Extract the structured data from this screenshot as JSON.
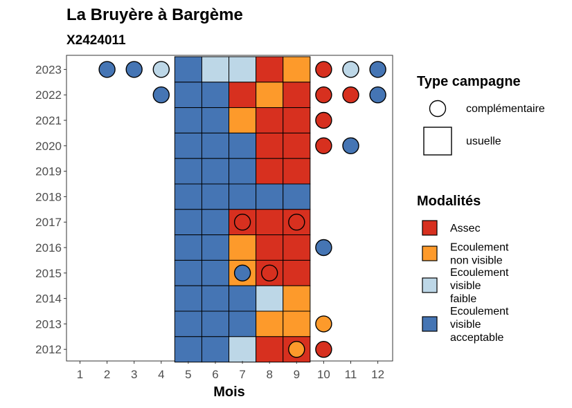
{
  "title": "La Bruyère à Bargème",
  "subtitle": "X2424011",
  "chart_data": {
    "type": "heatmap",
    "xlabel": "Mois",
    "ylabel": "",
    "x_ticks": [
      1,
      2,
      3,
      4,
      5,
      6,
      7,
      8,
      9,
      10,
      11,
      12
    ],
    "y_ticks": [
      2023,
      2022,
      2021,
      2020,
      2019,
      2018,
      2017,
      2016,
      2015,
      2014,
      2013,
      2012
    ],
    "colors": {
      "Assec": "#d7301f",
      "Ecoulement non visible": "#fd9a2b",
      "Ecoulement visible faible": "#bdd7e7",
      "Ecoulement visible acceptable": "#4575b4"
    },
    "usuelle": [
      {
        "year": 2023,
        "cells": [
          [
            5,
            "Ecoulement visible acceptable"
          ],
          [
            6,
            "Ecoulement visible faible"
          ],
          [
            7,
            "Ecoulement visible faible"
          ],
          [
            8,
            "Assec"
          ],
          [
            9,
            "Ecoulement non visible"
          ]
        ]
      },
      {
        "year": 2022,
        "cells": [
          [
            5,
            "Ecoulement visible acceptable"
          ],
          [
            6,
            "Ecoulement visible acceptable"
          ],
          [
            7,
            "Assec"
          ],
          [
            8,
            "Ecoulement non visible"
          ],
          [
            9,
            "Assec"
          ]
        ]
      },
      {
        "year": 2021,
        "cells": [
          [
            5,
            "Ecoulement visible acceptable"
          ],
          [
            6,
            "Ecoulement visible acceptable"
          ],
          [
            7,
            "Ecoulement non visible"
          ],
          [
            8,
            "Assec"
          ],
          [
            9,
            "Assec"
          ]
        ]
      },
      {
        "year": 2020,
        "cells": [
          [
            5,
            "Ecoulement visible acceptable"
          ],
          [
            6,
            "Ecoulement visible acceptable"
          ],
          [
            7,
            "Ecoulement visible acceptable"
          ],
          [
            8,
            "Assec"
          ],
          [
            9,
            "Assec"
          ]
        ]
      },
      {
        "year": 2019,
        "cells": [
          [
            5,
            "Ecoulement visible acceptable"
          ],
          [
            6,
            "Ecoulement visible acceptable"
          ],
          [
            7,
            "Ecoulement visible acceptable"
          ],
          [
            8,
            "Assec"
          ],
          [
            9,
            "Assec"
          ]
        ]
      },
      {
        "year": 2018,
        "cells": [
          [
            5,
            "Ecoulement visible acceptable"
          ],
          [
            6,
            "Ecoulement visible acceptable"
          ],
          [
            7,
            "Ecoulement visible acceptable"
          ],
          [
            8,
            "Ecoulement visible acceptable"
          ],
          [
            9,
            "Ecoulement visible acceptable"
          ]
        ]
      },
      {
        "year": 2017,
        "cells": [
          [
            5,
            "Ecoulement visible acceptable"
          ],
          [
            6,
            "Ecoulement visible acceptable"
          ],
          [
            7,
            "Assec"
          ],
          [
            8,
            "Assec"
          ],
          [
            9,
            "Assec"
          ]
        ]
      },
      {
        "year": 2016,
        "cells": [
          [
            5,
            "Ecoulement visible acceptable"
          ],
          [
            6,
            "Ecoulement visible acceptable"
          ],
          [
            7,
            "Ecoulement non visible"
          ],
          [
            8,
            "Assec"
          ],
          [
            9,
            "Assec"
          ]
        ]
      },
      {
        "year": 2015,
        "cells": [
          [
            5,
            "Ecoulement visible acceptable"
          ],
          [
            6,
            "Ecoulement visible acceptable"
          ],
          [
            7,
            "Ecoulement non visible"
          ],
          [
            8,
            "Assec"
          ],
          [
            9,
            "Assec"
          ]
        ]
      },
      {
        "year": 2014,
        "cells": [
          [
            5,
            "Ecoulement visible acceptable"
          ],
          [
            6,
            "Ecoulement visible acceptable"
          ],
          [
            7,
            "Ecoulement visible acceptable"
          ],
          [
            8,
            "Ecoulement visible faible"
          ],
          [
            9,
            "Ecoulement non visible"
          ]
        ]
      },
      {
        "year": 2013,
        "cells": [
          [
            5,
            "Ecoulement visible acceptable"
          ],
          [
            6,
            "Ecoulement visible acceptable"
          ],
          [
            7,
            "Ecoulement visible acceptable"
          ],
          [
            8,
            "Ecoulement non visible"
          ],
          [
            9,
            "Ecoulement non visible"
          ]
        ]
      },
      {
        "year": 2012,
        "cells": [
          [
            5,
            "Ecoulement visible acceptable"
          ],
          [
            6,
            "Ecoulement visible acceptable"
          ],
          [
            7,
            "Ecoulement visible faible"
          ],
          [
            8,
            "Assec"
          ],
          [
            9,
            "Assec"
          ]
        ]
      }
    ],
    "complementaire": [
      {
        "year": 2023,
        "month": 2,
        "modalite": "Ecoulement visible acceptable"
      },
      {
        "year": 2023,
        "month": 3,
        "modalite": "Ecoulement visible acceptable"
      },
      {
        "year": 2023,
        "month": 4,
        "modalite": "Ecoulement visible faible"
      },
      {
        "year": 2023,
        "month": 10,
        "modalite": "Assec"
      },
      {
        "year": 2023,
        "month": 11,
        "modalite": "Ecoulement visible faible"
      },
      {
        "year": 2023,
        "month": 12,
        "modalite": "Ecoulement visible acceptable"
      },
      {
        "year": 2022,
        "month": 4,
        "modalite": "Ecoulement visible acceptable"
      },
      {
        "year": 2022,
        "month": 10,
        "modalite": "Assec"
      },
      {
        "year": 2022,
        "month": 11,
        "modalite": "Assec"
      },
      {
        "year": 2022,
        "month": 12,
        "modalite": "Ecoulement visible acceptable"
      },
      {
        "year": 2021,
        "month": 10,
        "modalite": "Assec"
      },
      {
        "year": 2020,
        "month": 10,
        "modalite": "Assec"
      },
      {
        "year": 2020,
        "month": 11,
        "modalite": "Ecoulement visible acceptable"
      },
      {
        "year": 2017,
        "month": 7,
        "modalite": "Assec"
      },
      {
        "year": 2017,
        "month": 9,
        "modalite": "Assec"
      },
      {
        "year": 2016,
        "month": 10,
        "modalite": "Ecoulement visible acceptable"
      },
      {
        "year": 2015,
        "month": 7,
        "modalite": "Ecoulement visible acceptable"
      },
      {
        "year": 2015,
        "month": 8,
        "modalite": "Assec"
      },
      {
        "year": 2013,
        "month": 10,
        "modalite": "Ecoulement non visible"
      },
      {
        "year": 2012,
        "month": 9,
        "modalite": "Ecoulement non visible"
      },
      {
        "year": 2012,
        "month": 10,
        "modalite": "Assec"
      }
    ]
  },
  "legend": {
    "type_title": "Type campagne",
    "type_items": [
      {
        "label": "complémentaire",
        "shape": "circle"
      },
      {
        "label": "usuelle",
        "shape": "square"
      }
    ],
    "modalites_title": "Modalités",
    "modalites_items": [
      {
        "key": "Assec",
        "lines": [
          "Assec"
        ]
      },
      {
        "key": "Ecoulement non visible",
        "lines": [
          "Ecoulement",
          "non visible"
        ]
      },
      {
        "key": "Ecoulement visible faible",
        "lines": [
          "Ecoulement",
          "visible",
          "faible"
        ]
      },
      {
        "key": "Ecoulement visible acceptable",
        "lines": [
          "Ecoulement",
          "visible",
          "acceptable"
        ]
      }
    ]
  }
}
